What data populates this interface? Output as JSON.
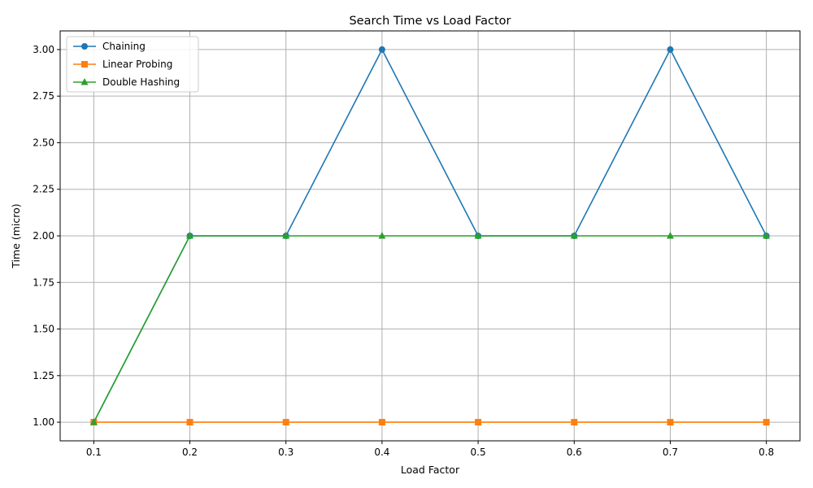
{
  "chart_data": {
    "type": "line",
    "title": "Search Time vs Load Factor",
    "xlabel": "Load Factor",
    "ylabel": "Time (micro)",
    "x": [
      0.1,
      0.2,
      0.3,
      0.4,
      0.5,
      0.6,
      0.7,
      0.8
    ],
    "x_ticks": [
      "0.1",
      "0.2",
      "0.3",
      "0.4",
      "0.5",
      "0.6",
      "0.7",
      "0.8"
    ],
    "y_ticks": [
      "1.00",
      "1.25",
      "1.50",
      "1.75",
      "2.00",
      "2.25",
      "2.50",
      "2.75",
      "3.00"
    ],
    "xlim": [
      0.065,
      0.835
    ],
    "ylim": [
      0.9,
      3.1
    ],
    "grid": true,
    "legend_position": "top-left",
    "series": [
      {
        "name": "Chaining",
        "color": "#1f77b4",
        "marker": "circle",
        "values": [
          1,
          2,
          2,
          3,
          2,
          2,
          3,
          2
        ]
      },
      {
        "name": "Linear Probing",
        "color": "#ff7f0e",
        "marker": "square",
        "values": [
          1,
          1,
          1,
          1,
          1,
          1,
          1,
          1
        ]
      },
      {
        "name": "Double Hashing",
        "color": "#2ca02c",
        "marker": "triangle",
        "values": [
          1,
          2,
          2,
          2,
          2,
          2,
          2,
          2
        ]
      }
    ]
  }
}
